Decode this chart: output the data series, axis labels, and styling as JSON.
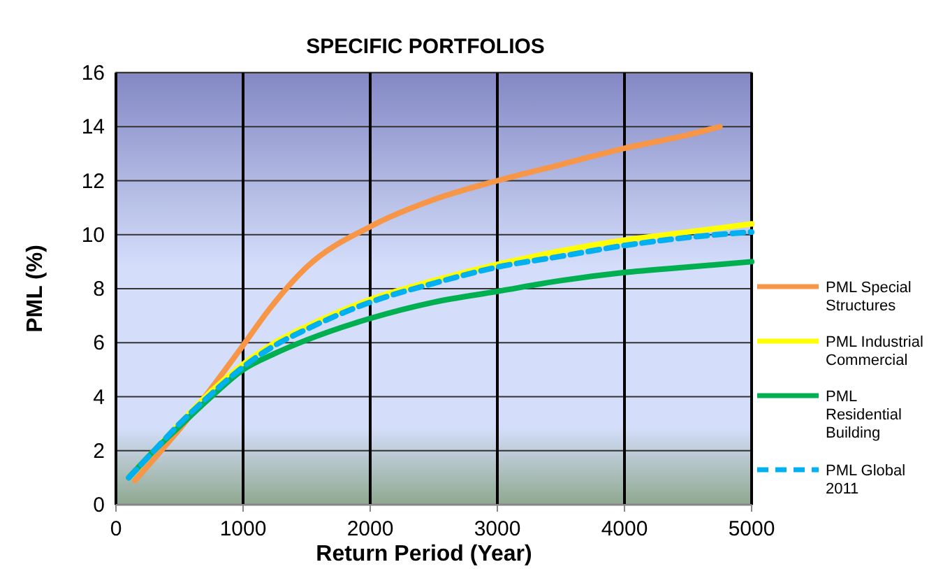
{
  "chart_data": {
    "type": "line",
    "title": "SPECIFIC PORTFOLIOS",
    "xlabel": "Return Period (Year)",
    "ylabel": "PML (%)",
    "xlim": [
      0,
      5000
    ],
    "xticks": [
      0,
      1000,
      2000,
      3000,
      4000,
      5000
    ],
    "ylim": [
      0,
      16
    ],
    "yticks": [
      0,
      2,
      4,
      6,
      8,
      10,
      12,
      14,
      16
    ],
    "grid": true,
    "legend": "right",
    "marker": "none",
    "series": [
      {
        "name": "PML Special Structures",
        "color": "#f79646",
        "x": [
          150,
          300,
          500,
          700,
          1000,
          1200,
          1500,
          2000,
          2500,
          3000,
          3500,
          4000,
          4500,
          4750
        ],
        "values": [
          0.9,
          1.7,
          2.8,
          4.0,
          5.9,
          7.2,
          8.8,
          10.3,
          11.3,
          12.0,
          12.6,
          13.2,
          13.7,
          14.0
        ]
      },
      {
        "name": "PML Industrial Commercial",
        "color": "#ffff00",
        "x": [
          100,
          300,
          500,
          750,
          1000,
          1250,
          1500,
          2000,
          2500,
          3000,
          3500,
          4000,
          4500,
          5000
        ],
        "values": [
          1.0,
          2.0,
          3.0,
          4.2,
          5.2,
          6.0,
          6.6,
          7.6,
          8.3,
          8.9,
          9.4,
          9.8,
          10.1,
          10.4
        ]
      },
      {
        "name": "PML Residential Building",
        "color": "#00b050",
        "x": [
          100,
          300,
          500,
          750,
          1000,
          1250,
          1500,
          2000,
          2500,
          3000,
          3500,
          4000,
          4500,
          5000
        ],
        "values": [
          1.0,
          2.0,
          2.9,
          4.0,
          5.0,
          5.6,
          6.1,
          6.9,
          7.5,
          7.9,
          8.3,
          8.6,
          8.8,
          9.0
        ]
      },
      {
        "name": "PML Global 2011",
        "color": "#00b0f0",
        "line_style": "dashed",
        "x": [
          100,
          300,
          500,
          750,
          1000,
          1250,
          1500,
          2000,
          2500,
          3000,
          3500,
          4000,
          4500,
          5000
        ],
        "values": [
          1.0,
          2.0,
          3.0,
          4.1,
          5.1,
          5.9,
          6.5,
          7.5,
          8.2,
          8.8,
          9.2,
          9.6,
          9.9,
          10.1
        ]
      }
    ]
  }
}
